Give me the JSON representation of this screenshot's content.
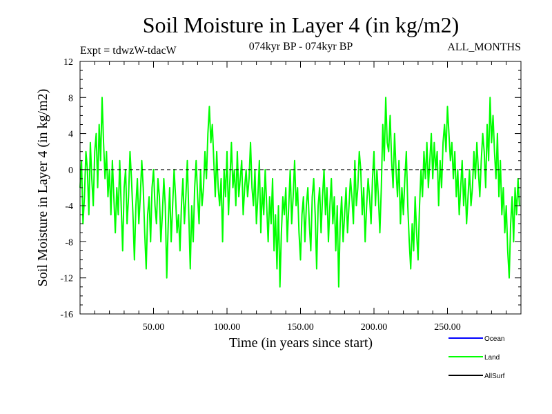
{
  "chart_data": {
    "type": "line",
    "title": "Soil Moisture in Layer 4 (in kg/m2)",
    "subtitle_left": "Expt = tdwzW-tdacW",
    "subtitle_center": "074kyr BP - 074kyr BP",
    "subtitle_right": "ALL_MONTHS",
    "xlabel": "Time (in years since start)",
    "ylabel": "Soil Moisture in Layer 4 (in kg/m2)",
    "xlim": [
      0,
      300
    ],
    "ylim": [
      -16,
      12
    ],
    "x_ticks": [
      50,
      100,
      150,
      200,
      250
    ],
    "x_tick_labels": [
      "50.00",
      "100.00",
      "150.00",
      "200.00",
      "250.00"
    ],
    "y_ticks": [
      -16,
      -12,
      -8,
      -4,
      0,
      4,
      8,
      12
    ],
    "y_tick_labels": [
      "-16",
      "-12",
      "-8",
      "-4",
      "0",
      "4",
      "8",
      "12"
    ],
    "zero_line": "dashed",
    "legend": [
      {
        "name": "Ocean",
        "color": "#0000ff"
      },
      {
        "name": "Land",
        "color": "#00ff00"
      },
      {
        "name": "AllSurf",
        "color": "#000000"
      }
    ],
    "series": [
      {
        "name": "Land",
        "color": "#00ff00",
        "x_start": 0,
        "x_step": 1,
        "values": [
          -2,
          1,
          -6,
          -3,
          2,
          0,
          -5,
          3,
          -1,
          -4,
          2,
          4,
          -2,
          5,
          1,
          8,
          3,
          -1,
          2,
          -3,
          0,
          -5,
          1,
          -3,
          -7,
          -2,
          -5,
          1,
          -4,
          -9,
          -2,
          0,
          -6,
          -3,
          2,
          -1,
          -5,
          -10,
          -4,
          -1,
          -6,
          -3,
          1,
          -2,
          -7,
          -11,
          -5,
          -3,
          -8,
          -2,
          0,
          -4,
          -6,
          -1,
          -3,
          -8,
          -5,
          -1,
          -4,
          -12,
          -6,
          -2,
          -8,
          -4,
          0,
          -3,
          -7,
          -5,
          -9,
          -4,
          -1,
          -6,
          -3,
          1,
          -5,
          -11,
          -4,
          -8,
          -2,
          1,
          -3,
          -6,
          0,
          -4,
          -2,
          2,
          -1,
          4,
          7,
          3,
          5,
          1,
          -3,
          2,
          -2,
          -4,
          -1,
          -8,
          0,
          -3,
          2,
          -5,
          -1,
          3,
          -2,
          0,
          -4,
          2,
          -3,
          -1,
          1,
          -5,
          -2,
          0,
          -3,
          -1,
          3,
          -2,
          -4,
          0,
          -6,
          -3,
          1,
          -7,
          -2,
          -5,
          0,
          -4,
          -8,
          -3,
          -6,
          -1,
          -9,
          -5,
          -11,
          -4,
          -13,
          -7,
          -3,
          -5,
          -2,
          -8,
          -4,
          0,
          -6,
          -3,
          1,
          -4,
          -2,
          -7,
          -10,
          -5,
          -3,
          -8,
          -4,
          -2,
          -6,
          -9,
          -3,
          -1,
          -5,
          -11,
          -4,
          -2,
          -7,
          -3,
          0,
          -5,
          -2,
          -8,
          -4,
          -1,
          -6,
          -3,
          -9,
          -4,
          -13,
          -6,
          -3,
          -8,
          -5,
          -2,
          -7,
          -4,
          -1,
          -3,
          -6,
          1,
          -4,
          -2,
          2,
          0,
          -5,
          -2,
          -8,
          -4,
          -1,
          -3,
          -6,
          -1,
          2,
          -4,
          0,
          -3,
          -7,
          -2,
          5,
          1,
          8,
          3,
          2,
          6,
          1,
          -2,
          4,
          0,
          -3,
          1,
          -6,
          -2,
          -5,
          -1,
          2,
          -4,
          -8,
          -11,
          -6,
          -9,
          -3,
          -7,
          -10,
          -4,
          0,
          -3,
          2,
          -1,
          3,
          -2,
          1,
          4,
          -1,
          3,
          0,
          2,
          -4,
          1,
          -2,
          3,
          5,
          2,
          7,
          4,
          1,
          3,
          -1,
          2,
          -3,
          0,
          -5,
          -2,
          1,
          -4,
          -1,
          -6,
          -3,
          0,
          -4,
          -2,
          2,
          -1,
          3,
          0,
          -3,
          1,
          4,
          2,
          -2,
          5,
          1,
          8,
          3,
          6,
          2,
          -1,
          4,
          -3,
          1,
          -5,
          -2,
          -7,
          -4,
          -9,
          -12,
          -6,
          -3,
          -8,
          -2,
          -5,
          -1,
          -4
        ]
      }
    ]
  }
}
